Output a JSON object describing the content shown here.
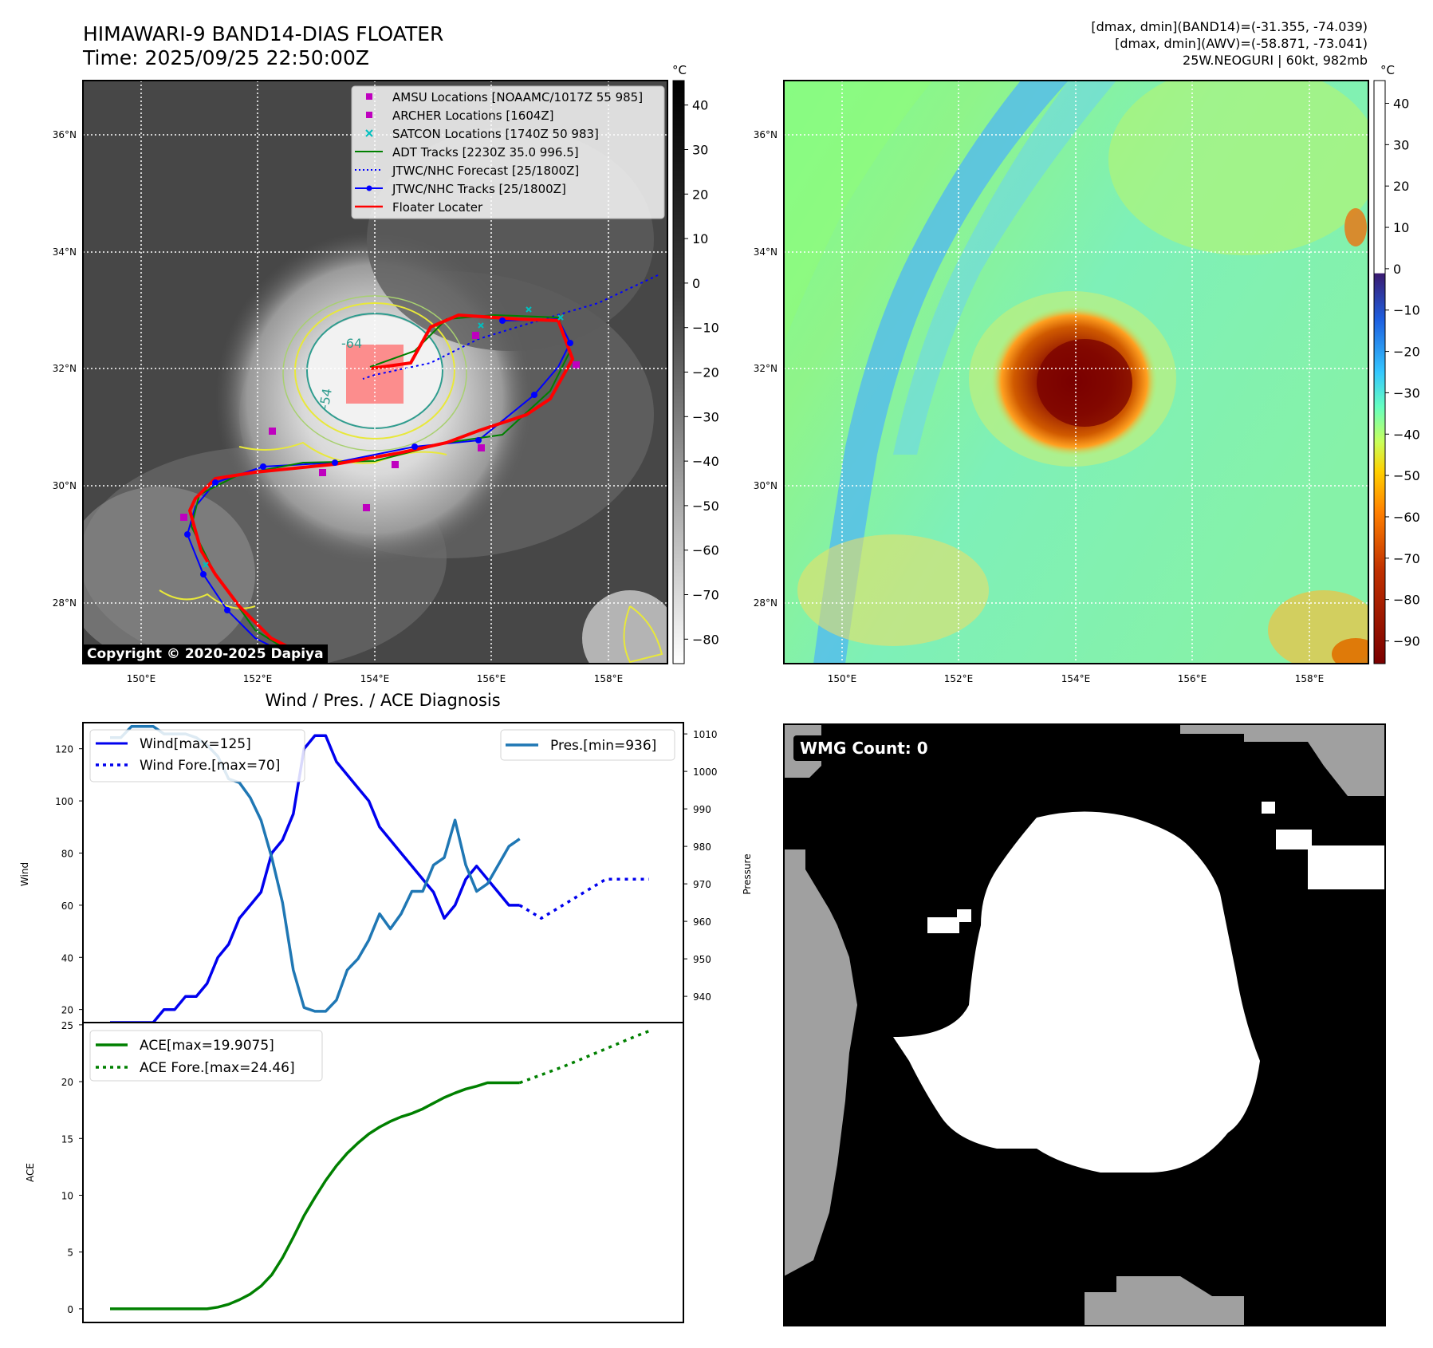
{
  "header": {
    "title": "HIMAWARI-9 BAND14-DIAS FLOATER",
    "time": "Time: 2025/09/25 22:50:00Z",
    "info_line1": "[dmax, dmin](BAND14)=(-31.355, -74.039)",
    "info_line2": "[dmax, dmin](AWV)=(-58.871, -73.041)",
    "info_line3": "25W.NEOGURI | 60kt, 982mb"
  },
  "colors": {
    "wind": "#0000ee",
    "pressure": "#1f77b4",
    "ace": "#008000",
    "floater": "#ff0000",
    "amsu": "#bf00bf",
    "satcon": "#00bfbf",
    "adt": "#008000",
    "jtwc": "#0000ff"
  },
  "map_axes": {
    "lat_ticks": [
      "36°N",
      "34°N",
      "32°N",
      "30°N",
      "28°N"
    ],
    "lon_ticks": [
      "150°E",
      "152°E",
      "154°E",
      "156°E",
      "158°E"
    ],
    "contour_labels": [
      "-64",
      "-54"
    ]
  },
  "ir_colorbar": {
    "unit": "°C",
    "ticks": [
      "40",
      "30",
      "20",
      "10",
      "0",
      "−10",
      "−20",
      "−30",
      "−40",
      "−50",
      "−60",
      "−70",
      "−80"
    ]
  },
  "awv_colorbar": {
    "unit": "°C",
    "ticks": [
      "40",
      "30",
      "20",
      "10",
      "0",
      "−10",
      "−20",
      "−30",
      "−40",
      "−50",
      "−60",
      "−70",
      "−80",
      "−90"
    ]
  },
  "legend": [
    {
      "label": "AMSU Locations [NOAAMC/1017Z 55 985]",
      "icon": "square-marker"
    },
    {
      "label": "ARCHER Locations [1604Z]",
      "icon": "square-marker"
    },
    {
      "label": "SATCON Locations [1740Z 50 983]",
      "icon": "x-marker"
    },
    {
      "label": "ADT Tracks [2230Z 35.0 996.5]",
      "icon": "line"
    },
    {
      "label": "JTWC/NHC Forecast [25/1800Z]",
      "icon": "dotted-line"
    },
    {
      "label": "JTWC/NHC Tracks [25/1800Z]",
      "icon": "line-dot"
    },
    {
      "label": "Floater Locater",
      "icon": "line"
    }
  ],
  "copyright": "Copyright © 2020-2025 Dapiya",
  "wmg": {
    "label": "WMG Count: 0"
  },
  "diagnosis": {
    "title": "Wind / Pres. / ACE Diagnosis",
    "wind_ylabel": "Wind",
    "pressure_ylabel": "Pressure",
    "ace_ylabel": "ACE"
  },
  "chart_data": [
    {
      "type": "line",
      "title": "Wind / Pres. / ACE Diagnosis",
      "x": [
        0,
        1,
        2,
        3,
        4,
        5,
        6,
        7,
        8,
        9,
        10,
        11,
        12,
        13,
        14,
        15,
        16,
        17,
        18,
        19,
        20,
        21,
        22,
        23,
        24,
        25,
        26,
        27,
        28,
        29,
        30,
        31,
        32,
        33,
        34,
        35,
        36,
        37,
        38
      ],
      "ylabel": "Wind",
      "ylim": [
        15,
        130
      ],
      "yticks": [
        "20",
        "40",
        "60",
        "80",
        "100",
        "120"
      ],
      "y2label": "Pressure",
      "y2lim": [
        933,
        1013
      ],
      "y2ticks": [
        "940",
        "950",
        "960",
        "970",
        "980",
        "990",
        "1000",
        "1010"
      ],
      "series": [
        {
          "name": "Wind",
          "legend": "Wind[max=125]",
          "style": "solid",
          "color": "#0000ee",
          "axis": "left",
          "x": [
            0,
            1,
            2,
            3,
            4,
            5,
            6,
            7,
            8,
            9,
            10,
            11,
            12,
            13,
            14,
            15,
            16,
            17,
            18,
            19,
            20,
            21,
            22,
            23,
            24,
            25,
            26,
            27,
            28,
            29,
            30,
            31,
            32,
            33,
            34,
            35,
            36,
            37,
            38
          ],
          "values": [
            15,
            15,
            15,
            15,
            15,
            20,
            20,
            25,
            25,
            30,
            40,
            45,
            55,
            60,
            65,
            80,
            85,
            95,
            120,
            125,
            125,
            115,
            110,
            105,
            100,
            90,
            85,
            80,
            75,
            70,
            65,
            55,
            60,
            70,
            75,
            70,
            65,
            60,
            60
          ]
        },
        {
          "name": "Wind Fore.",
          "legend": "Wind Fore.[max=70]",
          "style": "dotted",
          "color": "#0000ee",
          "axis": "left",
          "x": [
            38,
            40,
            42,
            44,
            46,
            48,
            50
          ],
          "values": [
            60,
            55,
            60,
            65,
            70,
            70,
            70
          ]
        },
        {
          "name": "Pres.",
          "legend": "Pres.[min=936]",
          "style": "solid",
          "color": "#1f77b4",
          "axis": "right",
          "x": [
            0,
            1,
            2,
            3,
            4,
            5,
            6,
            7,
            8,
            9,
            10,
            11,
            12,
            13,
            14,
            15,
            16,
            17,
            18,
            19,
            20,
            21,
            22,
            23,
            24,
            25,
            26,
            27,
            28,
            29,
            30,
            31,
            32,
            33,
            34,
            35,
            36,
            37,
            38
          ],
          "values": [
            1009,
            1009,
            1012,
            1012,
            1012,
            1010,
            1010,
            1010,
            1009,
            1007,
            1004,
            998,
            997,
            993,
            987,
            977,
            965,
            947,
            937,
            936,
            936,
            939,
            947,
            950,
            955,
            962,
            958,
            962,
            968,
            968,
            975,
            977,
            987,
            975,
            968,
            970,
            975,
            980,
            982
          ]
        }
      ]
    },
    {
      "type": "line",
      "x": [
        0,
        1,
        2,
        3,
        4,
        5,
        6,
        7,
        8,
        9,
        10,
        11,
        12,
        13,
        14,
        15,
        16,
        17,
        18,
        19,
        20,
        21,
        22,
        23,
        24,
        25,
        26,
        27,
        28,
        29,
        30,
        31,
        32,
        33,
        34,
        35,
        36,
        37,
        38
      ],
      "ylabel": "ACE",
      "ylim": [
        -1.2,
        25.2
      ],
      "yticks": [
        "0",
        "5",
        "10",
        "15",
        "20",
        "25"
      ],
      "series": [
        {
          "name": "ACE",
          "legend": "ACE[max=19.9075]",
          "style": "solid",
          "color": "#008000",
          "x": [
            0,
            1,
            2,
            3,
            4,
            5,
            6,
            7,
            8,
            9,
            10,
            11,
            12,
            13,
            14,
            15,
            16,
            17,
            18,
            19,
            20,
            21,
            22,
            23,
            24,
            25,
            26,
            27,
            28,
            29,
            30,
            31,
            32,
            33,
            34,
            35,
            36,
            37,
            38
          ],
          "values": [
            0,
            0,
            0,
            0,
            0,
            0,
            0,
            0,
            0,
            0,
            0.15,
            0.4,
            0.8,
            1.3,
            2,
            3,
            4.5,
            6.3,
            8.2,
            9.8,
            11.3,
            12.6,
            13.7,
            14.6,
            15.4,
            16,
            16.5,
            16.9,
            17.2,
            17.6,
            18.1,
            18.6,
            19.0,
            19.35,
            19.6,
            19.9,
            19.9,
            19.9,
            19.9
          ]
        },
        {
          "name": "ACE Fore.",
          "legend": "ACE Fore.[max=24.46]",
          "style": "dotted",
          "color": "#008000",
          "x": [
            38,
            40,
            42,
            44,
            46,
            48,
            50
          ],
          "values": [
            19.9,
            20.6,
            21.3,
            22.1,
            22.9,
            23.7,
            24.46
          ]
        }
      ]
    }
  ]
}
